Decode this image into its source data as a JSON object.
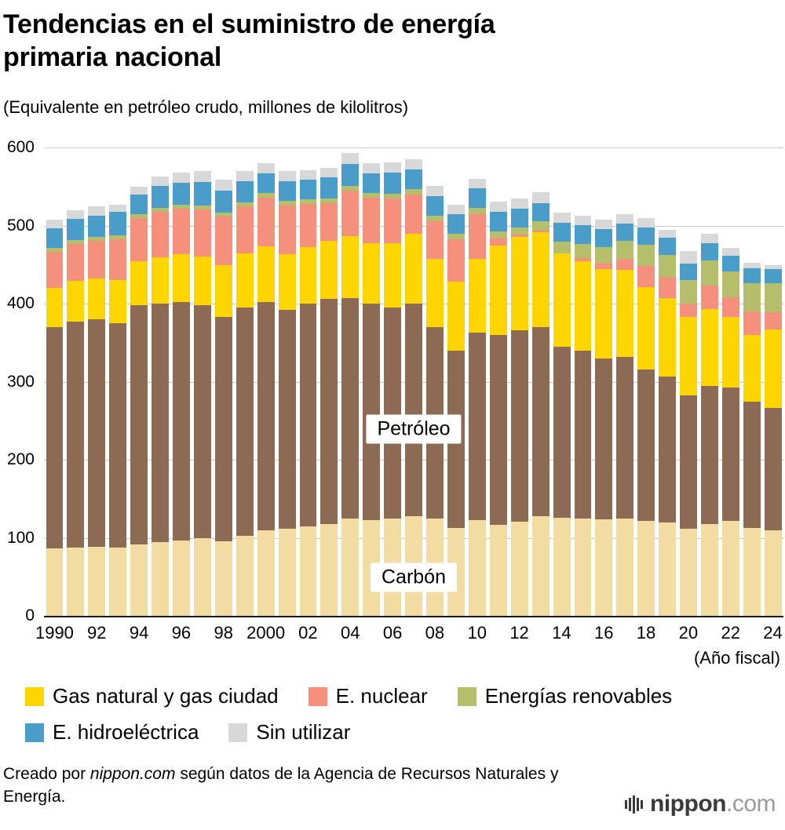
{
  "header": {
    "title_line1": "Tendencias en el suministro de energía",
    "title_line2": "primaria nacional",
    "subtitle": "(Equivalente en petróleo crudo, millones de kilolitros)"
  },
  "chart_data": {
    "type": "bar",
    "stacked": true,
    "title": "Tendencias en el suministro de energía primaria nacional",
    "unit_note": "(Equivalente en petróleo crudo, millones de kilolitros)",
    "ylim": [
      0,
      600
    ],
    "yticks": [
      0,
      100,
      200,
      300,
      400,
      500,
      600
    ],
    "x_axis_note": "(Año fiscal)",
    "years": [
      1990,
      1991,
      1992,
      1993,
      1994,
      1995,
      1996,
      1997,
      1998,
      1999,
      2000,
      2001,
      2002,
      2003,
      2004,
      2005,
      2006,
      2007,
      2008,
      2009,
      2010,
      2011,
      2012,
      2013,
      2014,
      2015,
      2016,
      2017,
      2018,
      2019,
      2020,
      2021,
      2022,
      2023,
      2024
    ],
    "series": [
      {
        "key": "carbon",
        "name": "Carbón",
        "color": "#F2DCA2",
        "values": [
          87,
          88,
          89,
          88,
          92,
          95,
          97,
          100,
          96,
          103,
          110,
          112,
          115,
          118,
          125,
          123,
          125,
          128,
          125,
          113,
          123,
          117,
          121,
          128,
          126,
          125,
          124,
          125,
          122,
          120,
          112,
          118,
          122,
          113,
          110
        ]
      },
      {
        "key": "petroleo",
        "name": "Petróleo",
        "color": "#8C6A53",
        "values": [
          283,
          289,
          291,
          287,
          306,
          305,
          305,
          298,
          287,
          292,
          292,
          280,
          285,
          288,
          282,
          277,
          270,
          272,
          245,
          227,
          240,
          243,
          245,
          242,
          219,
          215,
          206,
          207,
          194,
          187,
          171,
          177,
          171,
          162,
          157
        ]
      },
      {
        "key": "gas",
        "name": "Gas natural y gas ciudad",
        "color": "#FFD500",
        "values": [
          50,
          52,
          53,
          55,
          57,
          60,
          62,
          63,
          67,
          70,
          72,
          72,
          73,
          75,
          80,
          78,
          83,
          90,
          88,
          88,
          95,
          115,
          120,
          122,
          120,
          115,
          115,
          112,
          105,
          100,
          100,
          98,
          90,
          85,
          100
        ]
      },
      {
        "key": "nuclear",
        "name": "E. nuclear",
        "color": "#F4907B",
        "values": [
          47,
          48,
          48,
          53,
          55,
          58,
          58,
          60,
          62,
          60,
          62,
          62,
          55,
          48,
          58,
          58,
          57,
          50,
          48,
          55,
          57,
          10,
          3,
          2,
          0,
          4,
          8,
          14,
          28,
          28,
          17,
          30,
          25,
          30,
          22
        ]
      },
      {
        "key": "renovables",
        "name": "Energías renovables",
        "color": "#B5BE6A",
        "values": [
          5,
          5,
          5,
          5,
          5,
          5,
          5,
          5,
          5,
          5,
          6,
          6,
          6,
          6,
          6,
          6,
          6,
          7,
          7,
          7,
          8,
          8,
          9,
          12,
          15,
          18,
          20,
          23,
          27,
          28,
          30,
          33,
          34,
          36,
          38
        ]
      },
      {
        "key": "hidro",
        "name": "E. hidroeléctrica",
        "color": "#4A9DC8",
        "values": [
          25,
          27,
          27,
          30,
          25,
          28,
          28,
          30,
          28,
          27,
          25,
          25,
          25,
          27,
          28,
          25,
          27,
          25,
          25,
          25,
          25,
          25,
          24,
          23,
          24,
          24,
          23,
          22,
          22,
          22,
          22,
          22,
          20,
          20,
          18
        ]
      },
      {
        "key": "sin_utilizar",
        "name": "Sin utilizar",
        "color": "#D8D8D8",
        "values": [
          11,
          11,
          12,
          9,
          10,
          12,
          13,
          14,
          14,
          13,
          13,
          13,
          12,
          12,
          14,
          13,
          13,
          13,
          13,
          12,
          12,
          13,
          13,
          14,
          13,
          12,
          12,
          12,
          12,
          10,
          16,
          12,
          10,
          7,
          5
        ]
      }
    ],
    "xticks": [
      {
        "label": "1990",
        "bar": 0
      },
      {
        "label": "92",
        "bar": 2
      },
      {
        "label": "94",
        "bar": 4
      },
      {
        "label": "96",
        "bar": 6
      },
      {
        "label": "98",
        "bar": 8
      },
      {
        "label": "2000",
        "bar": 10
      },
      {
        "label": "02",
        "bar": 12
      },
      {
        "label": "04",
        "bar": 14
      },
      {
        "label": "06",
        "bar": 16
      },
      {
        "label": "08",
        "bar": 18
      },
      {
        "label": "10",
        "bar": 20
      },
      {
        "label": "12",
        "bar": 22
      },
      {
        "label": "14",
        "bar": 24
      },
      {
        "label": "16",
        "bar": 26
      },
      {
        "label": "18",
        "bar": 28
      },
      {
        "label": "20",
        "bar": 30
      },
      {
        "label": "22",
        "bar": 32
      },
      {
        "label": "24",
        "bar": 34
      }
    ],
    "annotations": [
      {
        "key": "petroleo",
        "text": "Petróleo",
        "x_frac": 0.5,
        "value": 240
      },
      {
        "key": "carbon",
        "text": "Carbón",
        "x_frac": 0.5,
        "value": 50
      }
    ],
    "legend_rows": [
      [
        "gas",
        "nuclear",
        "renovables"
      ],
      [
        "hidro",
        "sin_utilizar"
      ]
    ]
  },
  "footer": {
    "credit": {
      "prefix": "Creado por ",
      "source": "nippon.com",
      "suffix": " según datos de la Agencia de Recursos Naturales y Energía."
    },
    "logo": {
      "name": "nippon",
      "tld": ".com"
    }
  }
}
